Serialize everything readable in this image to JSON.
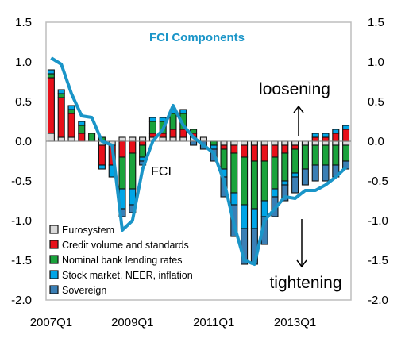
{
  "chart_data": {
    "type": "bar",
    "title": "FCI Components",
    "ylim": [
      -2.0,
      1.5
    ],
    "y_ticks": [
      "1.5",
      "1.0",
      "0.5",
      "0.0",
      "-0.5",
      "-1.0",
      "-1.5",
      "-2.0"
    ],
    "y_ticks_right": [
      "1.5",
      "1.0",
      "0.5",
      "0.0",
      "-0.5",
      "-1.0",
      "-1.5",
      "-2.0"
    ],
    "x_tick_labels": [
      "2007Q1",
      "2009Q1",
      "2011Q1",
      "2013Q1"
    ],
    "categories": [
      "2007Q1",
      "2007Q2",
      "2007Q3",
      "2007Q4",
      "2008Q1",
      "2008Q2",
      "2008Q3",
      "2008Q4",
      "2009Q1",
      "2009Q2",
      "2009Q3",
      "2009Q4",
      "2010Q1",
      "2010Q2",
      "2010Q3",
      "2010Q4",
      "2011Q1",
      "2011Q2",
      "2011Q3",
      "2011Q4",
      "2012Q1",
      "2012Q2",
      "2012Q3",
      "2012Q4",
      "2013Q1",
      "2013Q2",
      "2013Q3",
      "2013Q4",
      "2014Q1",
      "2014Q2"
    ],
    "stacked": true,
    "series": [
      {
        "name": "Eurosystem",
        "color": "#d9d9d9",
        "values": [
          0.1,
          0.05,
          0.05,
          0.0,
          0.0,
          -0.05,
          -0.05,
          0.05,
          0.05,
          0.05,
          0.05,
          0.05,
          0.05,
          0.05,
          0.05,
          0.05,
          0.0,
          -0.05,
          -0.05,
          -0.05,
          -0.05,
          -0.05,
          -0.05,
          -0.05,
          -0.05,
          -0.05,
          -0.05,
          -0.05,
          -0.05,
          -0.05
        ]
      },
      {
        "name": "Credit volume  and standards",
        "color": "#e8101a",
        "values": [
          0.7,
          0.5,
          0.3,
          0.1,
          0.0,
          -0.25,
          -0.25,
          -0.2,
          -0.15,
          -0.05,
          0.05,
          0.05,
          0.1,
          0.1,
          0.05,
          0.0,
          0.0,
          -0.05,
          -0.1,
          -0.15,
          -0.2,
          -0.2,
          -0.15,
          -0.1,
          -0.05,
          0.0,
          0.05,
          0.05,
          0.1,
          0.15
        ]
      },
      {
        "name": "Nominal bank lending  rates",
        "color": "#1aa33c",
        "values": [
          0.05,
          0.05,
          0.05,
          0.1,
          0.1,
          0.05,
          0.0,
          -0.4,
          -0.45,
          -0.15,
          0.15,
          0.15,
          0.2,
          0.2,
          0.05,
          0.0,
          -0.05,
          -0.25,
          -0.5,
          -0.6,
          -0.6,
          -0.5,
          -0.4,
          -0.35,
          -0.3,
          -0.3,
          -0.25,
          -0.25,
          -0.25,
          -0.2
        ]
      },
      {
        "name": "Stock market, NEER, inflation",
        "color": "#00a5e6",
        "values": [
          0.05,
          0.05,
          0.05,
          0.05,
          0.0,
          -0.05,
          -0.15,
          -0.25,
          -0.2,
          -0.05,
          0.05,
          0.05,
          0.05,
          0.05,
          0.0,
          0.0,
          -0.05,
          -0.1,
          -0.15,
          -0.3,
          -0.25,
          -0.2,
          -0.1,
          -0.05,
          -0.05,
          0.0,
          0.05,
          0.05,
          0.05,
          0.05
        ]
      },
      {
        "name": "Sovereign",
        "color": "#3a7fb5",
        "values": [
          0.0,
          0.0,
          0.0,
          0.0,
          0.0,
          0.0,
          0.0,
          -0.1,
          -0.1,
          -0.05,
          0.0,
          0.0,
          0.0,
          0.0,
          -0.05,
          -0.1,
          -0.15,
          -0.25,
          -0.4,
          -0.45,
          -0.45,
          -0.35,
          -0.25,
          -0.2,
          -0.2,
          -0.2,
          -0.2,
          -0.2,
          -0.15,
          -0.1
        ]
      }
    ],
    "line": {
      "name": "FCI",
      "color": "#1a95c8",
      "values": [
        1.05,
        0.97,
        0.6,
        0.32,
        0.3,
        0.0,
        -0.05,
        -1.12,
        -1.0,
        -0.35,
        0.0,
        0.15,
        0.45,
        0.2,
        0.05,
        -0.05,
        -0.15,
        -0.5,
        -1.05,
        -1.5,
        -1.55,
        -1.0,
        -0.85,
        -0.7,
        -0.72,
        -0.62,
        -0.62,
        -0.55,
        -0.45,
        -0.33
      ]
    },
    "annotations": [
      "loosening",
      "tightening",
      "FCI"
    ],
    "legend_position": "bottom-left"
  }
}
